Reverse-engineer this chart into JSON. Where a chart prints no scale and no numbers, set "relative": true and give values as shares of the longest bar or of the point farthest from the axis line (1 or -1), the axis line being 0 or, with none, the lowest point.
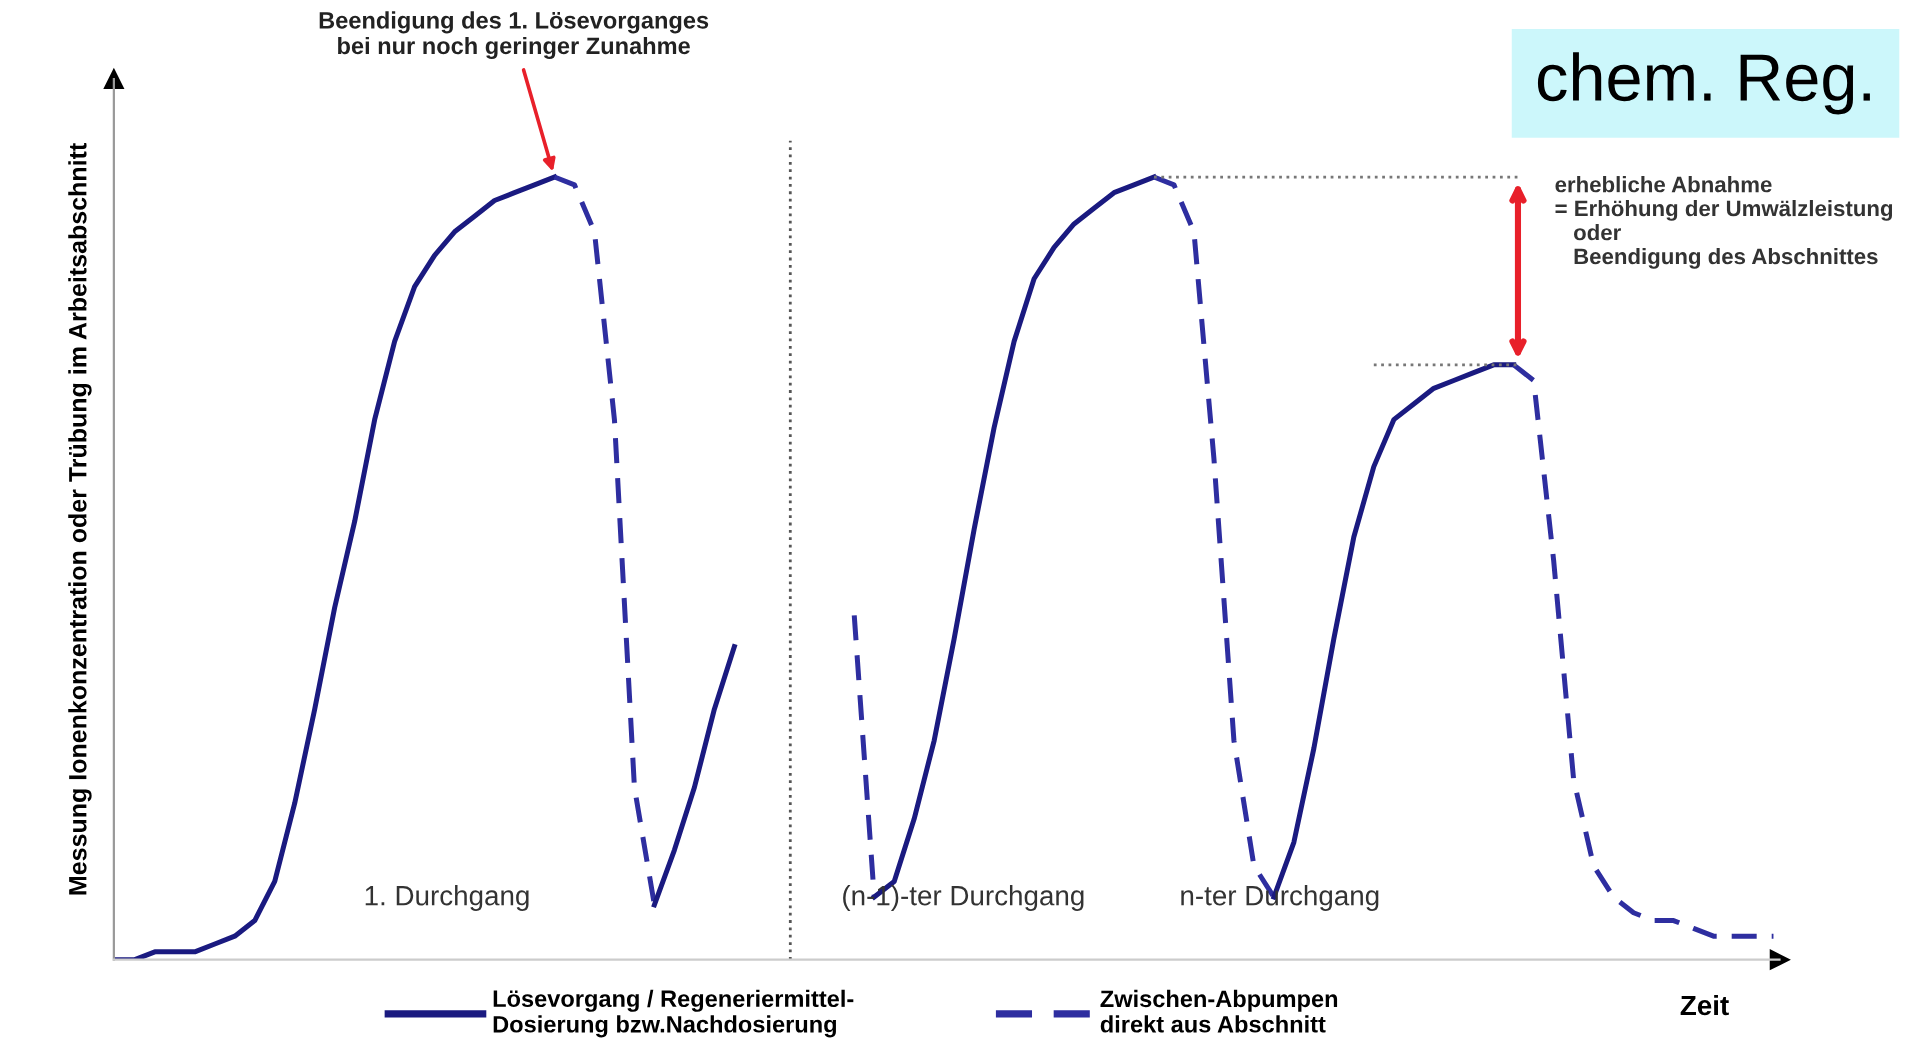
{
  "chart_data": {
    "type": "line",
    "relative": true,
    "title": "chem. Reg.",
    "ylabel": "Messung Ionenkonzentration oder Trübung im Arbeitsabschnitt",
    "xlabel": "Zeit",
    "categories": [
      null,
      null,
      null,
      null,
      null,
      null,
      null,
      null,
      null,
      null,
      null,
      null,
      null,
      null,
      null,
      null,
      null,
      null,
      null,
      null,
      null,
      null,
      null,
      null,
      null,
      null,
      null,
      null,
      null,
      null,
      null,
      null,
      null,
      null,
      null,
      null,
      null,
      null,
      null,
      null,
      null,
      null,
      null,
      null,
      null,
      null,
      null,
      null,
      null,
      null,
      null,
      null,
      null,
      null,
      null,
      null,
      null,
      null,
      null,
      null,
      null,
      null,
      null,
      null,
      null,
      null,
      null,
      null,
      null,
      null,
      null,
      null,
      null,
      null,
      null,
      null,
      null,
      null,
      null,
      null,
      null,
      null,
      null,
      null
    ],
    "series": [
      {
        "name": "Lösevorgang / Regeneriermittel-\nDosierung bzw.Nachdosierung",
        "color": "#1a1a80",
        "line_style": "solid",
        "values": [
          0.0,
          0.0,
          0.01,
          0.01,
          0.01,
          0.02,
          0.03,
          0.05,
          0.1,
          0.2,
          0.32,
          0.45,
          0.56,
          0.69,
          0.79,
          0.86,
          0.9,
          0.93,
          0.95,
          0.97,
          0.98,
          0.99,
          1.0,
          null,
          null,
          null,
          null,
          null,
          null,
          null,
          null,
          null,
          null,
          null,
          null,
          null,
          null,
          null,
          null,
          null,
          null,
          null,
          null,
          null,
          null,
          null,
          null,
          null,
          null,
          null,
          null,
          null,
          null,
          null,
          null,
          null,
          null,
          null,
          null,
          null,
          null,
          null,
          null,
          null,
          null,
          null,
          null,
          null,
          null,
          null,
          null,
          null,
          null,
          null,
          null,
          null,
          null,
          null,
          null,
          null,
          null,
          null,
          null,
          null
        ]
      },
      {
        "name": "Zwischen-Abpumpen\ndirekt aus Abschnitt",
        "color": "#2e2ea0",
        "line_style": "dashed",
        "values": [
          null,
          null,
          null,
          null,
          null,
          null,
          null,
          null,
          null,
          null,
          null,
          null,
          null,
          null,
          null,
          null,
          null,
          null,
          null,
          null,
          null,
          null,
          1.0,
          0.99,
          0.93,
          0.69,
          0.22,
          0.07,
          null,
          null,
          null,
          null,
          null,
          null,
          null,
          null,
          null,
          null,
          null,
          null,
          null,
          null,
          null,
          null,
          null,
          null,
          null,
          null,
          null,
          null,
          null,
          null,
          null,
          null,
          null,
          null,
          null,
          null,
          null,
          null,
          null,
          null,
          null,
          null,
          null,
          null,
          null,
          null,
          null,
          null,
          null,
          null,
          null,
          null,
          null,
          null,
          null,
          null,
          null,
          null,
          null,
          null,
          null,
          null
        ]
      },
      {
        "color": "#1a1a80",
        "line_style": "solid",
        "values": [
          null,
          null,
          null,
          null,
          null,
          null,
          null,
          null,
          null,
          null,
          null,
          null,
          null,
          null,
          null,
          null,
          null,
          null,
          null,
          null,
          null,
          null,
          null,
          null,
          null,
          null,
          null,
          0.07,
          0.14,
          0.22,
          0.32,
          0.4,
          null,
          null,
          null,
          null,
          null,
          null,
          null,
          null,
          null,
          null,
          null,
          null,
          null,
          null,
          null,
          null,
          null,
          null,
          null,
          null,
          null,
          null,
          null,
          null,
          null,
          null,
          null,
          null,
          null,
          null,
          null,
          null,
          null,
          null,
          null,
          null,
          null,
          null,
          null,
          null,
          null,
          null,
          null,
          null,
          null,
          null,
          null,
          null,
          null,
          null,
          null,
          null
        ]
      },
      {
        "color": "#2e2ea0",
        "line_style": "dashed",
        "values": [
          null,
          null,
          null,
          null,
          null,
          null,
          null,
          null,
          null,
          null,
          null,
          null,
          null,
          null,
          null,
          null,
          null,
          null,
          null,
          null,
          null,
          null,
          null,
          null,
          null,
          null,
          null,
          null,
          null,
          null,
          null,
          null,
          null,
          null,
          null,
          null,
          null,
          0.44,
          0.08,
          null,
          null,
          null,
          null,
          null,
          null,
          null,
          null,
          null,
          null,
          null,
          null,
          null,
          null,
          null,
          null,
          null,
          null,
          null,
          null,
          null,
          null,
          null,
          null,
          null,
          null,
          null,
          null,
          null,
          null,
          null,
          null,
          null,
          null,
          null,
          null,
          null,
          null,
          null,
          null,
          null,
          null,
          null,
          null,
          null
        ]
      },
      {
        "color": "#1a1a80",
        "line_style": "solid",
        "values": [
          null,
          null,
          null,
          null,
          null,
          null,
          null,
          null,
          null,
          null,
          null,
          null,
          null,
          null,
          null,
          null,
          null,
          null,
          null,
          null,
          null,
          null,
          null,
          null,
          null,
          null,
          null,
          null,
          null,
          null,
          null,
          null,
          null,
          null,
          null,
          null,
          null,
          null,
          0.08,
          0.1,
          0.18,
          0.28,
          0.41,
          0.55,
          0.68,
          0.79,
          0.87,
          0.91,
          0.94,
          0.96,
          0.98,
          0.99,
          1.0,
          null,
          null,
          null,
          null,
          null,
          null,
          null,
          null,
          null,
          null,
          null,
          null,
          null,
          null,
          null,
          null,
          null,
          null,
          null,
          null,
          null,
          null,
          null,
          null,
          null,
          null,
          null,
          null,
          null,
          null,
          null
        ]
      },
      {
        "color": "#2e2ea0",
        "line_style": "dashed",
        "values": [
          null,
          null,
          null,
          null,
          null,
          null,
          null,
          null,
          null,
          null,
          null,
          null,
          null,
          null,
          null,
          null,
          null,
          null,
          null,
          null,
          null,
          null,
          null,
          null,
          null,
          null,
          null,
          null,
          null,
          null,
          null,
          null,
          null,
          null,
          null,
          null,
          null,
          null,
          null,
          null,
          null,
          null,
          null,
          null,
          null,
          null,
          null,
          null,
          null,
          null,
          null,
          null,
          1.0,
          0.99,
          0.93,
          0.64,
          0.28,
          0.12,
          0.08,
          null,
          null,
          null,
          null,
          null,
          null,
          null,
          null,
          null,
          null,
          null,
          null,
          null,
          null,
          null,
          null,
          null,
          null,
          null,
          null,
          null,
          null,
          null,
          null,
          null
        ]
      },
      {
        "color": "#1a1a80",
        "line_style": "solid",
        "values": [
          null,
          null,
          null,
          null,
          null,
          null,
          null,
          null,
          null,
          null,
          null,
          null,
          null,
          null,
          null,
          null,
          null,
          null,
          null,
          null,
          null,
          null,
          null,
          null,
          null,
          null,
          null,
          null,
          null,
          null,
          null,
          null,
          null,
          null,
          null,
          null,
          null,
          null,
          null,
          null,
          null,
          null,
          null,
          null,
          null,
          null,
          null,
          null,
          null,
          null,
          null,
          null,
          null,
          null,
          null,
          null,
          null,
          null,
          0.08,
          0.15,
          0.27,
          0.41,
          0.54,
          0.63,
          0.69,
          0.71,
          0.73,
          0.74,
          0.75,
          0.76,
          0.76,
          null,
          null,
          null,
          null,
          null,
          null,
          null,
          null,
          null,
          null,
          null,
          null,
          null
        ]
      },
      {
        "color": "#2e2ea0",
        "line_style": "dashed",
        "values": [
          null,
          null,
          null,
          null,
          null,
          null,
          null,
          null,
          null,
          null,
          null,
          null,
          null,
          null,
          null,
          null,
          null,
          null,
          null,
          null,
          null,
          null,
          null,
          null,
          null,
          null,
          null,
          null,
          null,
          null,
          null,
          null,
          null,
          null,
          null,
          null,
          null,
          null,
          null,
          null,
          null,
          null,
          null,
          null,
          null,
          null,
          null,
          null,
          null,
          null,
          null,
          null,
          null,
          null,
          null,
          null,
          null,
          null,
          null,
          null,
          null,
          null,
          null,
          null,
          null,
          null,
          null,
          null,
          null,
          null,
          0.76,
          0.74,
          0.51,
          0.23,
          0.12,
          0.08,
          0.06,
          0.05,
          0.05,
          0.04,
          0.03,
          0.03,
          0.03,
          0.03
        ]
      }
    ],
    "annotations": [
      "Beendigung des 1. Lösevorganges\nbei nur noch geringer Zunahme",
      "1. Durchgang",
      "(n-1)-ter Durchgang",
      "n-ter Durchgang",
      "erhebliche Abnahme\n= Erhöhung der Umwälzleistung\n   oder\n   Beendigung des Abschnittes"
    ],
    "legend": "bottom"
  }
}
